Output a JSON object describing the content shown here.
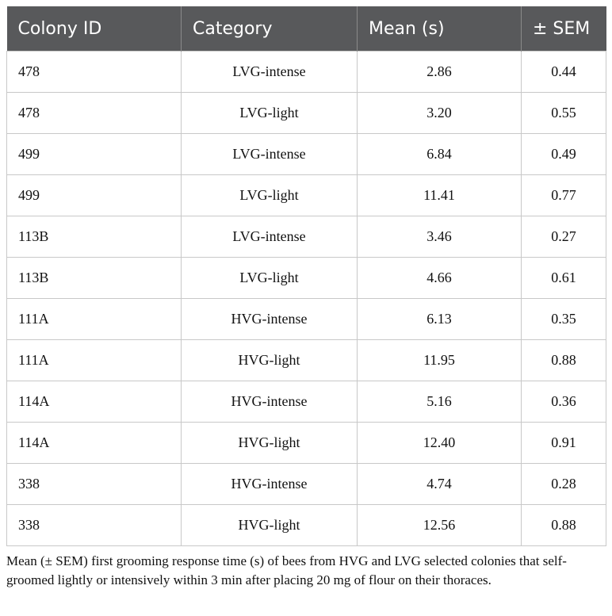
{
  "table": {
    "header": [
      "Colony ID",
      "Category",
      "Mean (s)",
      "± SEM"
    ],
    "rows": [
      [
        "478",
        "LVG-intense",
        "2.86",
        "0.44"
      ],
      [
        "478",
        "LVG-light",
        "3.20",
        "0.55"
      ],
      [
        "499",
        "LVG-intense",
        "6.84",
        "0.49"
      ],
      [
        "499",
        "LVG-light",
        "11.41",
        "0.77"
      ],
      [
        "113B",
        "LVG-intense",
        "3.46",
        "0.27"
      ],
      [
        "113B",
        "LVG-light",
        "4.66",
        "0.61"
      ],
      [
        "111A",
        "HVG-intense",
        "6.13",
        "0.35"
      ],
      [
        "111A",
        "HVG-light",
        "11.95",
        "0.88"
      ],
      [
        "114A",
        "HVG-intense",
        "5.16",
        "0.36"
      ],
      [
        "114A",
        "HVG-light",
        "12.40",
        "0.91"
      ],
      [
        "338",
        "HVG-intense",
        "4.74",
        "0.28"
      ],
      [
        "338",
        "HVG-light",
        "12.56",
        "0.88"
      ]
    ],
    "caption": "Mean (± SEM) first grooming response time (s) of bees from HVG and LVG selected colonies that self-groomed lightly or intensively within 3 min after placing 20 mg of flour on their thoraces."
  }
}
